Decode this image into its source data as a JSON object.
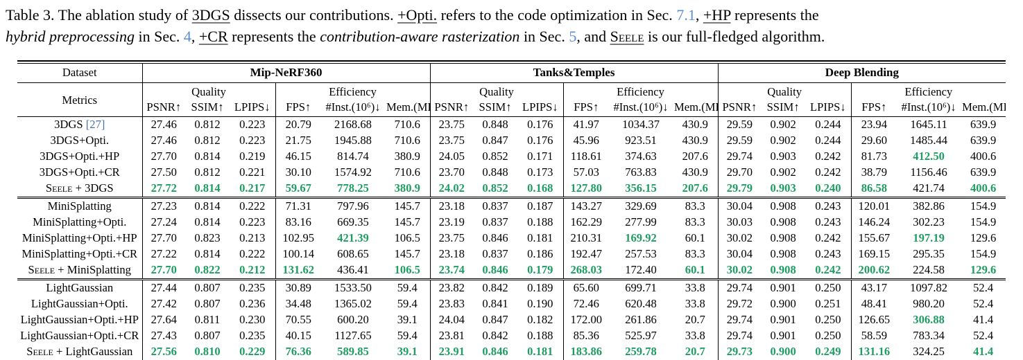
{
  "colors": {
    "best_green": "#1f9d63",
    "section_link_blue": "#5b8fce",
    "citation_blue": "#4a72a8"
  },
  "caption": {
    "segments": [
      {
        "t": "Table 3.  The ablation study of "
      },
      {
        "t": "3DGS",
        "s": "u"
      },
      {
        "t": " dissects our contributions.  "
      },
      {
        "t": "+Opti.",
        "s": "u"
      },
      {
        "t": " refers to the code optimization in Sec. "
      },
      {
        "t": "7.1",
        "s": "link"
      },
      {
        "t": ", "
      },
      {
        "t": "+HP",
        "s": "u"
      },
      {
        "t": " represents the"
      },
      {
        "br": true
      },
      {
        "t": "hybrid preprocessing",
        "s": "i"
      },
      {
        "t": " in Sec. "
      },
      {
        "t": "4",
        "s": "link"
      },
      {
        "t": ", "
      },
      {
        "t": "+CR",
        "s": "u"
      },
      {
        "t": " represents the "
      },
      {
        "t": "contribution-aware rasterization",
        "s": "i"
      },
      {
        "t": " in Sec. "
      },
      {
        "t": "5",
        "s": "link"
      },
      {
        "t": ", and "
      },
      {
        "t": "Seele",
        "s": "sc-u"
      },
      {
        "t": " is our full-fledged algorithm."
      }
    ]
  },
  "table": {
    "header": {
      "dataset_label": "Dataset",
      "metrics_label": "Metrics",
      "datasets": [
        "Mip-NeRF360",
        "Tanks&Temples",
        "Deep Blending"
      ],
      "quality_label": "Quality",
      "efficiency_label": "Efficiency",
      "metric_cols": [
        "PSNR↑",
        "SSIM↑",
        "LPIPS↓",
        "FPS↑",
        "#Inst.(10⁶)↓",
        "Mem.(MB)↓"
      ]
    },
    "groups": [
      {
        "rows": [
          {
            "label": "3DGS",
            "cite": "[27]",
            "values": [
              "27.46",
              "0.812",
              "0.223",
              "20.79",
              "2168.68",
              "710.6",
              "23.75",
              "0.848",
              "0.176",
              "41.97",
              "1034.37",
              "430.9",
              "29.59",
              "0.902",
              "0.244",
              "23.94",
              "1645.11",
              "639.9"
            ],
            "green": []
          },
          {
            "label": "3DGS+Opti.",
            "values": [
              "27.46",
              "0.812",
              "0.223",
              "21.75",
              "1945.88",
              "710.6",
              "23.75",
              "0.847",
              "0.176",
              "45.96",
              "923.51",
              "430.9",
              "29.59",
              "0.902",
              "0.244",
              "29.60",
              "1485.44",
              "639.9"
            ],
            "green": []
          },
          {
            "label": "3DGS+Opti.+HP",
            "values": [
              "27.70",
              "0.814",
              "0.219",
              "46.15",
              "814.74",
              "380.9",
              "24.05",
              "0.852",
              "0.171",
              "118.61",
              "374.63",
              "207.6",
              "29.74",
              "0.903",
              "0.242",
              "81.73",
              "412.50",
              "400.6"
            ],
            "green": [
              16
            ]
          },
          {
            "label": "3DGS+Opti.+CR",
            "values": [
              "27.50",
              "0.812",
              "0.221",
              "30.10",
              "1574.92",
              "710.6",
              "23.70",
              "0.848",
              "0.173",
              "57.03",
              "763.83",
              "430.9",
              "29.70",
              "0.902",
              "0.242",
              "38.79",
              "1156.46",
              "639.9"
            ],
            "green": []
          },
          {
            "sc": "Seele",
            "label": " + 3DGS",
            "values": [
              "27.72",
              "0.814",
              "0.217",
              "59.67",
              "778.25",
              "380.9",
              "24.02",
              "0.852",
              "0.168",
              "127.80",
              "356.15",
              "207.6",
              "29.79",
              "0.903",
              "0.240",
              "86.58",
              "421.74",
              "400.6"
            ],
            "green": [
              0,
              1,
              2,
              3,
              4,
              5,
              6,
              7,
              8,
              9,
              10,
              11,
              12,
              13,
              14,
              15,
              17
            ]
          }
        ]
      },
      {
        "rows": [
          {
            "label": "MiniSplatting",
            "values": [
              "27.23",
              "0.814",
              "0.222",
              "71.31",
              "797.96",
              "145.7",
              "23.18",
              "0.837",
              "0.187",
              "143.27",
              "329.69",
              "83.3",
              "30.04",
              "0.908",
              "0.243",
              "120.01",
              "382.86",
              "154.9"
            ],
            "green": []
          },
          {
            "label": "MiniSplatting+Opti.",
            "values": [
              "27.24",
              "0.814",
              "0.223",
              "83.16",
              "669.35",
              "145.7",
              "23.19",
              "0.837",
              "0.188",
              "162.29",
              "277.99",
              "83.3",
              "30.03",
              "0.908",
              "0.243",
              "146.24",
              "302.23",
              "154.9"
            ],
            "green": []
          },
          {
            "label": "MiniSplatting+Opti.+HP",
            "values": [
              "27.70",
              "0.823",
              "0.213",
              "102.95",
              "421.39",
              "106.5",
              "23.75",
              "0.846",
              "0.181",
              "210.31",
              "169.92",
              "60.1",
              "30.02",
              "0.908",
              "0.242",
              "155.67",
              "197.19",
              "129.6"
            ],
            "green": [
              4,
              10,
              16
            ]
          },
          {
            "label": "MiniSplatting+Opti.+CR",
            "values": [
              "27.22",
              "0.814",
              "0.222",
              "100.14",
              "608.65",
              "145.7",
              "23.18",
              "0.837",
              "0.186",
              "192.47",
              "257.53",
              "83.3",
              "30.04",
              "0.908",
              "0.243",
              "169.15",
              "295.35",
              "154.9"
            ],
            "green": []
          },
          {
            "sc": "Seele",
            "label": " + MiniSplatting",
            "values": [
              "27.70",
              "0.822",
              "0.212",
              "131.62",
              "436.41",
              "106.5",
              "23.74",
              "0.846",
              "0.179",
              "268.03",
              "172.40",
              "60.1",
              "30.02",
              "0.908",
              "0.242",
              "200.62",
              "224.58",
              "129.6"
            ],
            "green": [
              0,
              1,
              2,
              3,
              5,
              6,
              7,
              8,
              9,
              11,
              12,
              13,
              14,
              15,
              17
            ]
          }
        ]
      },
      {
        "rows": [
          {
            "label": "LightGaussian",
            "values": [
              "27.44",
              "0.807",
              "0.235",
              "30.89",
              "1533.50",
              "59.4",
              "23.82",
              "0.842",
              "0.189",
              "65.60",
              "699.71",
              "33.8",
              "29.74",
              "0.901",
              "0.250",
              "43.17",
              "1097.82",
              "52.4"
            ],
            "green": []
          },
          {
            "label": "LightGaussian+Opti.",
            "values": [
              "27.42",
              "0.807",
              "0.236",
              "34.48",
              "1365.02",
              "59.4",
              "23.83",
              "0.841",
              "0.190",
              "72.46",
              "620.48",
              "33.8",
              "29.72",
              "0.900",
              "0.251",
              "48.41",
              "980.20",
              "52.4"
            ],
            "green": []
          },
          {
            "label": "LightGaussian+Opti.+HP",
            "values": [
              "27.64",
              "0.811",
              "0.230",
              "70.55",
              "600.20",
              "39.1",
              "24.04",
              "0.847",
              "0.182",
              "172.00",
              "261.86",
              "20.7",
              "29.74",
              "0.901",
              "0.250",
              "126.65",
              "306.88",
              "41.4"
            ],
            "green": [
              16
            ]
          },
          {
            "label": "LightGaussian+Opti.+CR",
            "values": [
              "27.43",
              "0.807",
              "0.235",
              "40.15",
              "1127.65",
              "59.4",
              "23.81",
              "0.842",
              "0.188",
              "85.36",
              "525.97",
              "33.8",
              "29.74",
              "0.901",
              "0.250",
              "58.59",
              "783.34",
              "52.4"
            ],
            "green": []
          },
          {
            "sc": "Seele",
            "label": " + LightGaussian",
            "values": [
              "27.56",
              "0.810",
              "0.229",
              "76.36",
              "589.85",
              "39.1",
              "23.91",
              "0.846",
              "0.181",
              "183.86",
              "259.78",
              "20.7",
              "29.73",
              "0.900",
              "0.249",
              "131.16",
              "324.25",
              "41.4"
            ],
            "green": [
              0,
              1,
              2,
              3,
              4,
              5,
              6,
              7,
              8,
              9,
              10,
              11,
              12,
              13,
              14,
              15,
              17
            ]
          }
        ]
      }
    ]
  }
}
